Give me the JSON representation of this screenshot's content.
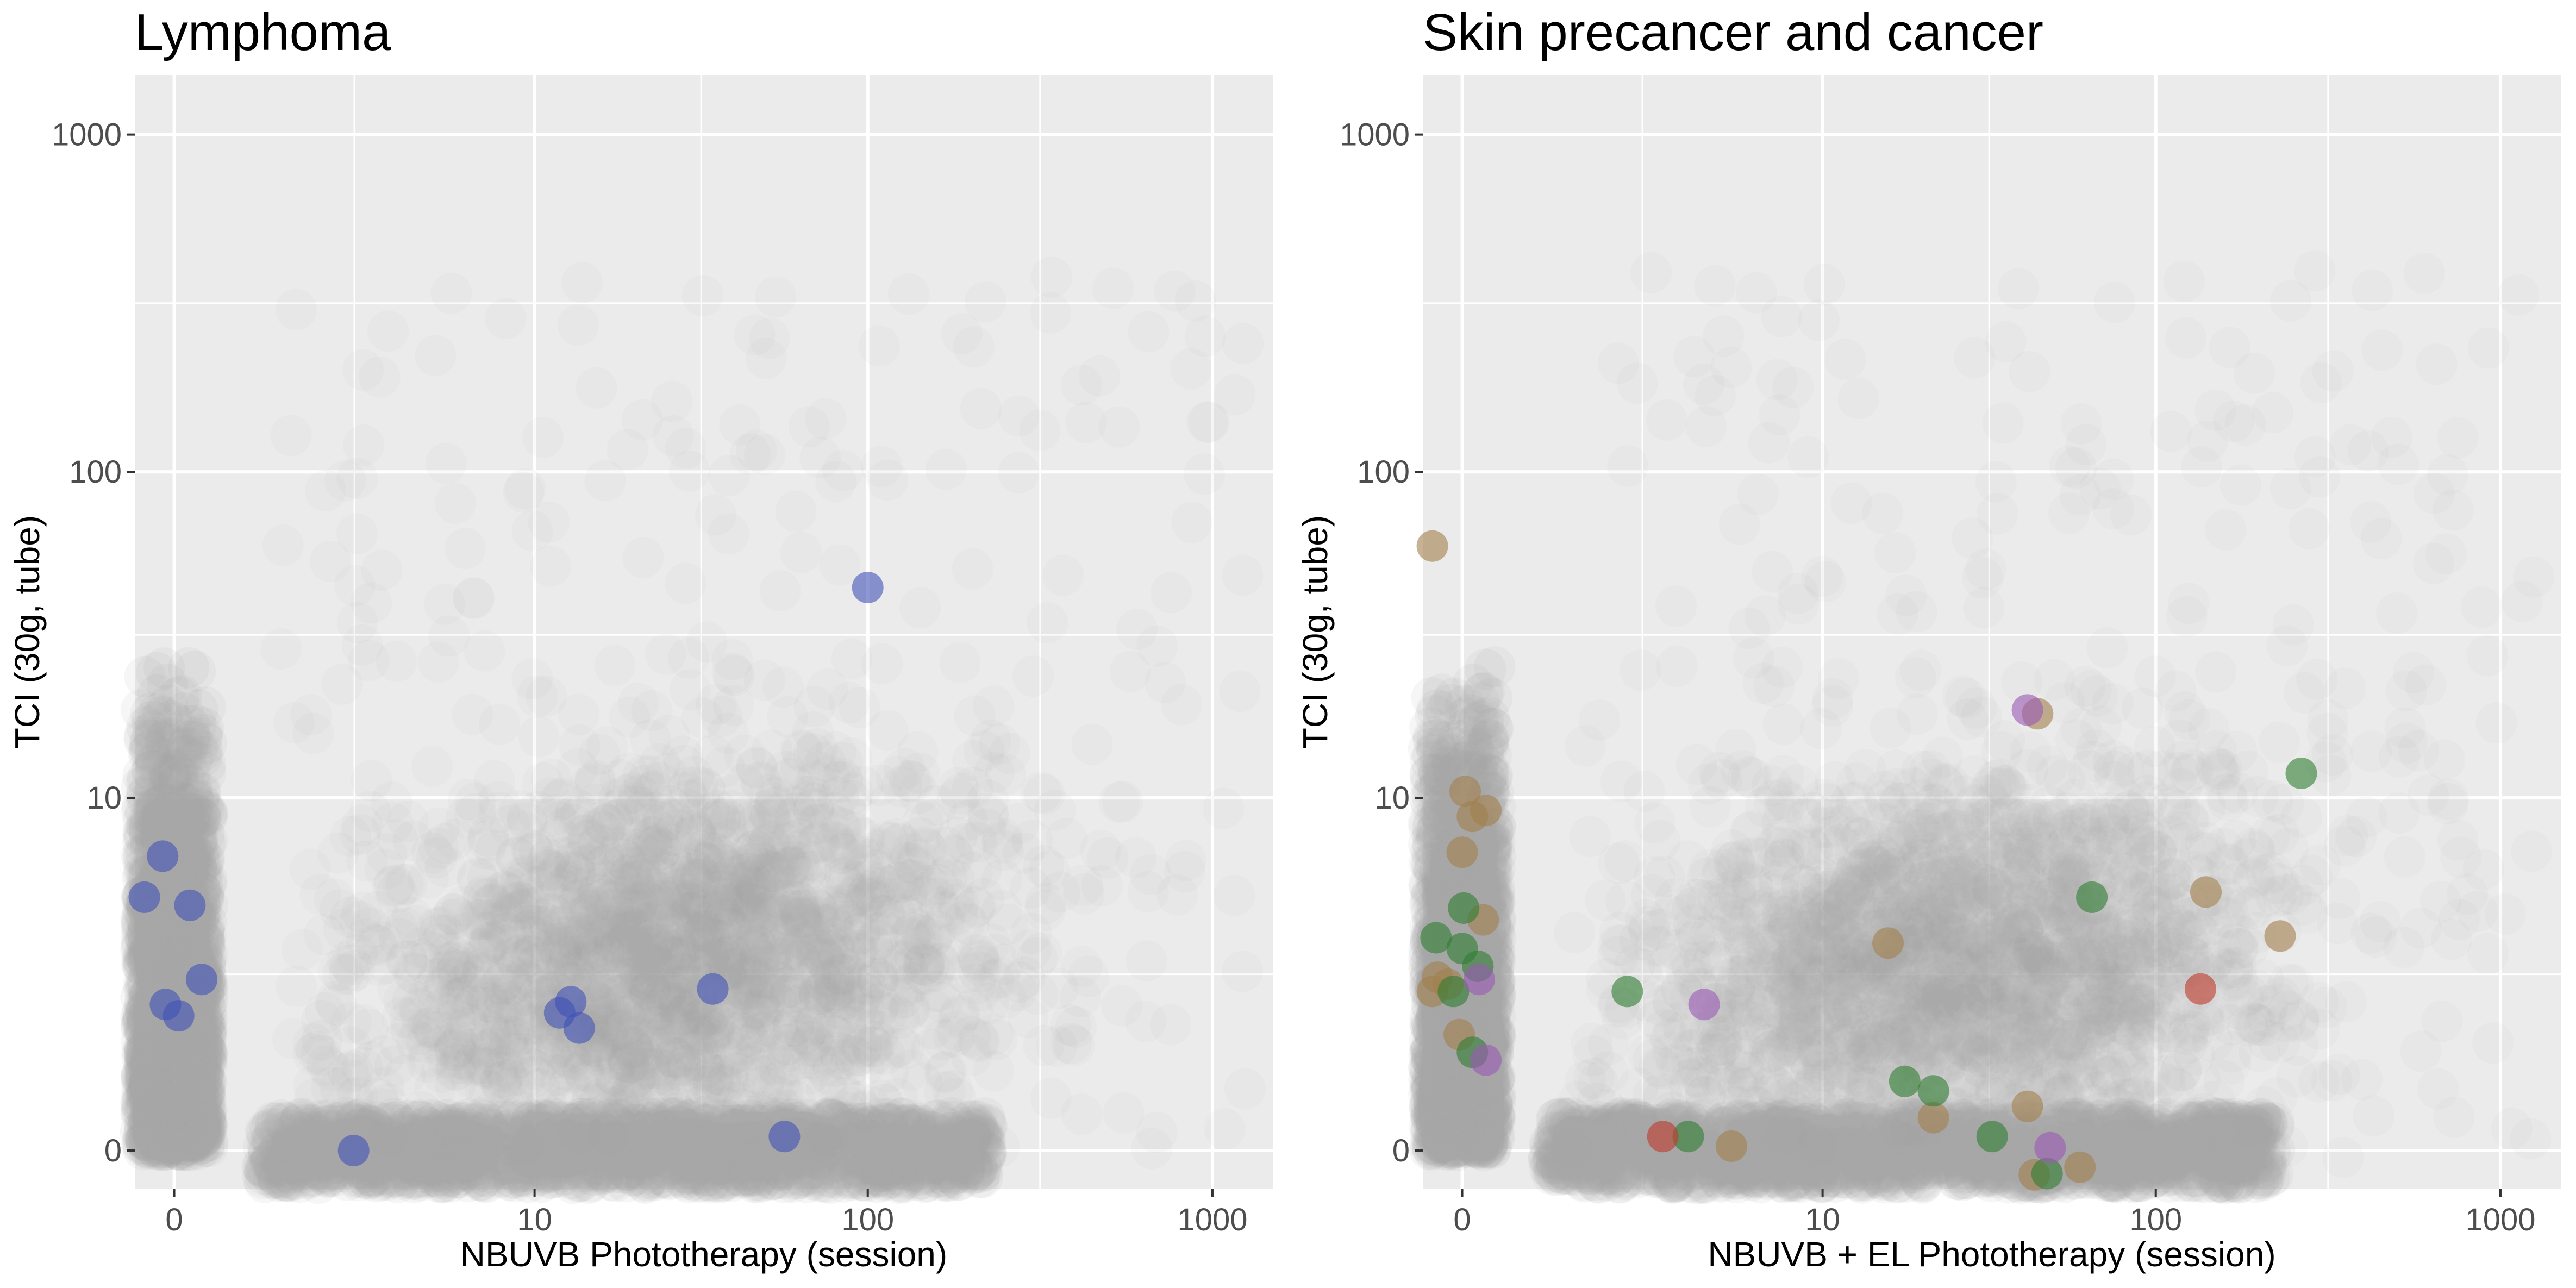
{
  "colors": {
    "background_cloud": "#a6a6a6",
    "lymphoma": "#3f51b5",
    "skin_brown": "#a1814c",
    "skin_green": "#2e7d32",
    "skin_red": "#c0392b",
    "skin_purple": "#9b59b6"
  },
  "chart_data": [
    {
      "type": "scatter",
      "title": "Lymphoma",
      "xlabel": "NBUVB Phototherapy (session)",
      "ylabel": "TCI (30g, tube)",
      "x_scale": "pseudo-log",
      "y_scale": "pseudo-log",
      "xlim": [
        -0.3,
        1500
      ],
      "ylim": [
        -0.3,
        1500
      ],
      "x_ticks": [
        {
          "value": 0,
          "label": "0"
        },
        {
          "value": 10,
          "label": "10"
        },
        {
          "value": 100,
          "label": "100"
        },
        {
          "value": 1000,
          "label": "1000"
        }
      ],
      "y_ticks": [
        {
          "value": 0,
          "label": "0"
        },
        {
          "value": 10,
          "label": "10"
        },
        {
          "value": 100,
          "label": "100"
        },
        {
          "value": 1000,
          "label": "1000"
        }
      ],
      "grid": true,
      "series": [
        {
          "color": "#3f51b5",
          "points": [
            {
              "x": -0.22,
              "y": 4.6
            },
            {
              "x": -0.08,
              "y": 6.4
            },
            {
              "x": 0.11,
              "y": 4.3
            },
            {
              "x": 0.2,
              "y": 2.2
            },
            {
              "x": -0.06,
              "y": 1.7
            },
            {
              "x": 0.03,
              "y": 1.5
            },
            {
              "x": 2.3,
              "y": 0.0
            },
            {
              "x": 12,
              "y": 1.55
            },
            {
              "x": 13,
              "y": 1.75
            },
            {
              "x": 13.8,
              "y": 1.3
            },
            {
              "x": 35,
              "y": 2.0
            },
            {
              "x": 57,
              "y": 0.1
            },
            {
              "x": 100,
              "y": 45
            }
          ]
        }
      ]
    },
    {
      "type": "scatter",
      "title": "Skin precancer and cancer",
      "xlabel": "NBUVB + EL Phototherapy (session)",
      "ylabel": "TCI (30g, tube)",
      "x_scale": "pseudo-log",
      "y_scale": "pseudo-log",
      "xlim": [
        -0.3,
        1500
      ],
      "ylim": [
        -0.3,
        1500
      ],
      "x_ticks": [
        {
          "value": 0,
          "label": "0"
        },
        {
          "value": 10,
          "label": "10"
        },
        {
          "value": 100,
          "label": "100"
        },
        {
          "value": 1000,
          "label": "1000"
        }
      ],
      "y_ticks": [
        {
          "value": 0,
          "label": "0"
        },
        {
          "value": 10,
          "label": "10"
        },
        {
          "value": 100,
          "label": "100"
        },
        {
          "value": 1000,
          "label": "1000"
        }
      ],
      "grid": true,
      "series": [
        {
          "color": "#a1814c",
          "points": [
            {
              "x": -0.22,
              "y": 60
            },
            {
              "x": 0.02,
              "y": 10.5
            },
            {
              "x": 0.07,
              "y": 8.7
            },
            {
              "x": 0.17,
              "y": 9.1
            },
            {
              "x": 0.0,
              "y": 6.6
            },
            {
              "x": 0.15,
              "y": 3.8
            },
            {
              "x": -0.18,
              "y": 2.25
            },
            {
              "x": -0.1,
              "y": 2.1
            },
            {
              "x": -0.22,
              "y": 1.95
            },
            {
              "x": -0.02,
              "y": 1.2
            },
            {
              "x": 5.0,
              "y": 0.03
            },
            {
              "x": 16,
              "y": 3.1
            },
            {
              "x": 22,
              "y": 0.25
            },
            {
              "x": 42,
              "y": 0.35
            },
            {
              "x": 44,
              "y": -0.18
            },
            {
              "x": 60,
              "y": -0.12
            },
            {
              "x": 45,
              "y": 18.5
            },
            {
              "x": 140,
              "y": 4.8
            },
            {
              "x": 230,
              "y": 3.3
            }
          ]
        },
        {
          "color": "#2e7d32",
          "points": [
            {
              "x": -0.19,
              "y": 3.25
            },
            {
              "x": 0.01,
              "y": 4.2
            },
            {
              "x": 0.0,
              "y": 2.95
            },
            {
              "x": 0.11,
              "y": 2.5
            },
            {
              "x": -0.06,
              "y": 1.95
            },
            {
              "x": 0.07,
              "y": 0.95
            },
            {
              "x": 2.0,
              "y": 1.95
            },
            {
              "x": 3.5,
              "y": 0.1
            },
            {
              "x": 18,
              "y": 0.6
            },
            {
              "x": 22,
              "y": 0.5
            },
            {
              "x": 33,
              "y": 0.1
            },
            {
              "x": 48,
              "y": -0.17
            },
            {
              "x": 65,
              "y": 4.6
            },
            {
              "x": 265,
              "y": 12
            }
          ]
        },
        {
          "color": "#c0392b",
          "points": [
            {
              "x": 2.8,
              "y": 0.1
            },
            {
              "x": 135,
              "y": 2.0
            }
          ]
        },
        {
          "color": "#9b59b6",
          "points": [
            {
              "x": 0.12,
              "y": 2.2
            },
            {
              "x": 0.17,
              "y": 0.85
            },
            {
              "x": 4.0,
              "y": 1.7
            },
            {
              "x": 42,
              "y": 19
            },
            {
              "x": 49,
              "y": 0.02
            }
          ]
        }
      ]
    }
  ]
}
